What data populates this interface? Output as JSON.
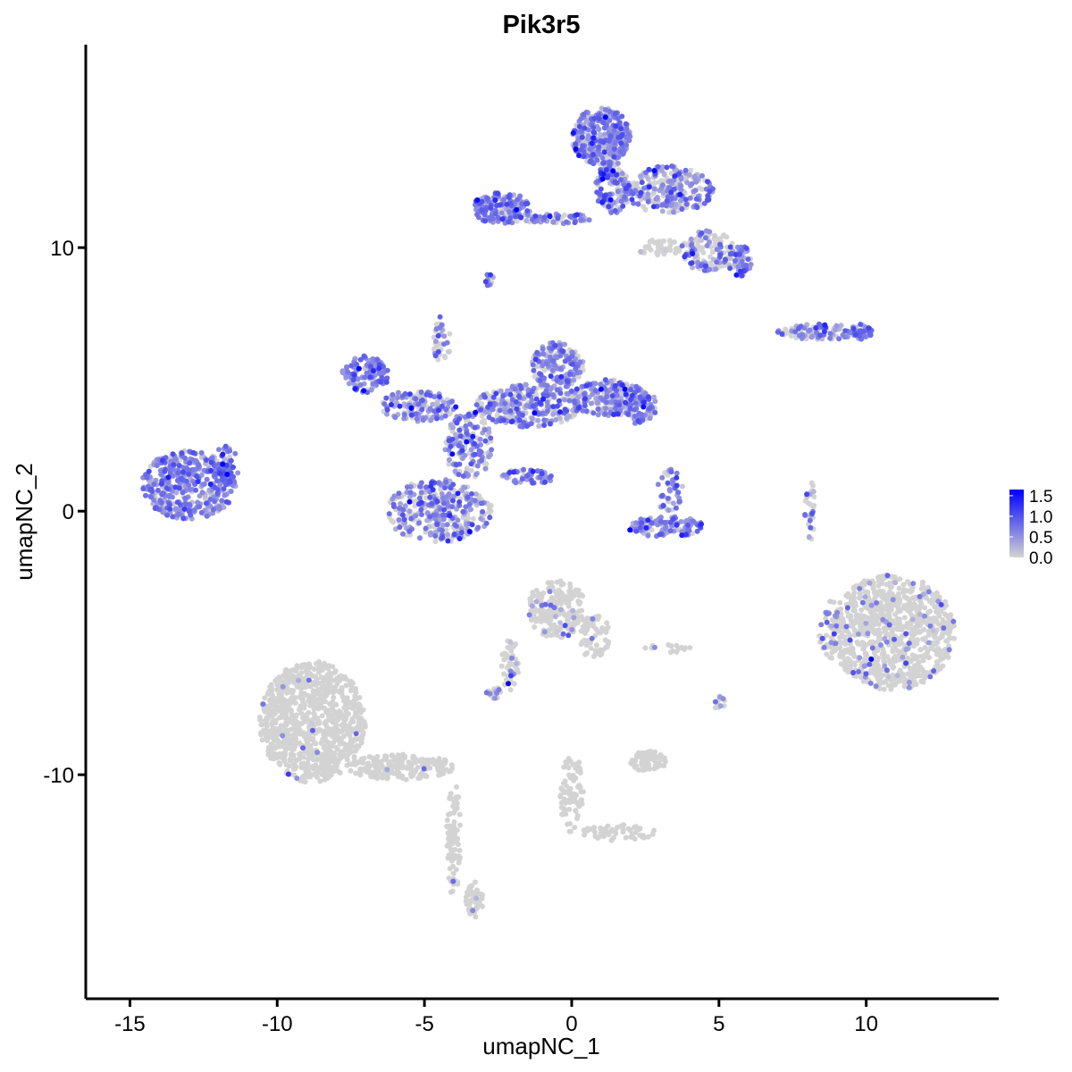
{
  "chart_data": {
    "type": "scatter",
    "title": "Pik3r5",
    "xlabel": "umapNC_1",
    "ylabel": "umapNC_2",
    "xlim": [
      -16.5,
      14.5
    ],
    "ylim": [
      -18.5,
      17.7
    ],
    "x_ticks": [
      -15,
      -10,
      -5,
      0,
      5,
      10
    ],
    "x_tick_labels": [
      "-15",
      "-10",
      "-5",
      "0",
      "5",
      "10"
    ],
    "y_ticks": [
      -10,
      0,
      10
    ],
    "y_tick_labels": [
      "-10",
      "0",
      "10"
    ],
    "grid": false,
    "legend": {
      "placement": "right",
      "type": "colorbar",
      "ticks": [
        0.0,
        0.5,
        1.0,
        1.5
      ],
      "tick_labels": [
        "0.0",
        "0.5",
        "1.0",
        "1.5"
      ],
      "range": [
        0,
        1.65
      ],
      "low_color": "#d3d3d3",
      "high_color": "#0000ff"
    },
    "clusters": [
      {
        "cx": -13,
        "cy": 1,
        "rx": 1.6,
        "ry": 1.3,
        "expr": 0.75,
        "n": 430
      },
      {
        "cx": -11.7,
        "cy": 1.7,
        "rx": 0.5,
        "ry": 0.8,
        "expr": 0.8,
        "n": 40
      },
      {
        "cx": -7,
        "cy": 5.2,
        "rx": 0.8,
        "ry": 0.7,
        "expr": 0.75,
        "n": 130
      },
      {
        "cx": -5.2,
        "cy": 4,
        "rx": 1.3,
        "ry": 0.6,
        "expr": 0.55,
        "n": 150
      },
      {
        "cx": -4.5,
        "cy": 0,
        "rx": 1.8,
        "ry": 1.2,
        "expr": 0.55,
        "n": 340
      },
      {
        "cx": -3.5,
        "cy": 2.5,
        "rx": 0.8,
        "ry": 1.3,
        "expr": 0.5,
        "n": 160
      },
      {
        "cx": -1.5,
        "cy": 4,
        "rx": 1.8,
        "ry": 0.8,
        "expr": 0.55,
        "n": 300
      },
      {
        "cx": -0.5,
        "cy": 5.5,
        "rx": 0.9,
        "ry": 0.9,
        "expr": 0.6,
        "n": 170
      },
      {
        "cx": 1.2,
        "cy": 4.3,
        "rx": 1.3,
        "ry": 0.7,
        "expr": 0.6,
        "n": 220
      },
      {
        "cx": 2.2,
        "cy": 4,
        "rx": 0.7,
        "ry": 0.7,
        "expr": 0.65,
        "n": 90
      },
      {
        "cx": -4.4,
        "cy": 6.5,
        "rx": 0.3,
        "ry": 0.9,
        "expr": 0.2,
        "n": 40
      },
      {
        "cx": -1.5,
        "cy": 1.3,
        "rx": 0.9,
        "ry": 0.3,
        "expr": 0.9,
        "n": 60
      },
      {
        "cx": -2.4,
        "cy": 11.5,
        "rx": 1,
        "ry": 0.6,
        "expr": 0.75,
        "n": 150
      },
      {
        "cx": -0.5,
        "cy": 11.1,
        "rx": 1.2,
        "ry": 0.2,
        "expr": 0.6,
        "n": 60
      },
      {
        "cx": 1,
        "cy": 14.2,
        "rx": 1,
        "ry": 1.1,
        "expr": 0.7,
        "n": 330
      },
      {
        "cx": 1.4,
        "cy": 12.3,
        "rx": 0.6,
        "ry": 1,
        "expr": 0.55,
        "n": 140
      },
      {
        "cx": 3.3,
        "cy": 12.2,
        "rx": 1.5,
        "ry": 0.9,
        "expr": 0.5,
        "n": 240
      },
      {
        "cx": 4.6,
        "cy": 9.9,
        "rx": 0.9,
        "ry": 0.8,
        "expr": 0.4,
        "n": 130
      },
      {
        "cx": 5.7,
        "cy": 9.5,
        "rx": 0.4,
        "ry": 0.6,
        "expr": 0.75,
        "n": 60
      },
      {
        "cx": 3,
        "cy": 10,
        "rx": 0.8,
        "ry": 0.3,
        "expr": 0.05,
        "n": 40
      },
      {
        "cx": 8.4,
        "cy": 6.8,
        "rx": 1.4,
        "ry": 0.3,
        "expr": 0.5,
        "n": 110
      },
      {
        "cx": 9.8,
        "cy": 6.8,
        "rx": 0.4,
        "ry": 0.3,
        "expr": 0.8,
        "n": 40
      },
      {
        "cx": 3.2,
        "cy": -0.6,
        "rx": 1.3,
        "ry": 0.4,
        "expr": 0.8,
        "n": 120
      },
      {
        "cx": 3.3,
        "cy": 0.8,
        "rx": 0.5,
        "ry": 0.8,
        "expr": 0.6,
        "n": 50
      },
      {
        "cx": 8.1,
        "cy": 0,
        "rx": 0.2,
        "ry": 1.2,
        "expr": 0.35,
        "n": 30
      },
      {
        "cx": 10.9,
        "cy": -4.6,
        "rx": 2.1,
        "ry": 2.2,
        "expr": 0.06,
        "n": 900
      },
      {
        "cx": 8.8,
        "cy": -4.5,
        "rx": 0.4,
        "ry": 1.1,
        "expr": 0.3,
        "n": 50
      },
      {
        "cx": -8.8,
        "cy": -8,
        "rx": 1.8,
        "ry": 2.3,
        "expr": 0.01,
        "n": 900
      },
      {
        "cx": -5.8,
        "cy": -9.7,
        "rx": 1.8,
        "ry": 0.5,
        "expr": 0.01,
        "n": 200
      },
      {
        "cx": -4,
        "cy": -12.5,
        "rx": 0.25,
        "ry": 2.2,
        "expr": 0.02,
        "n": 80
      },
      {
        "cx": -3.3,
        "cy": -14.7,
        "rx": 0.3,
        "ry": 0.7,
        "expr": 0.02,
        "n": 50
      },
      {
        "cx": -0.5,
        "cy": -3.7,
        "rx": 1,
        "ry": 1.1,
        "expr": 0.05,
        "n": 200
      },
      {
        "cx": 0.8,
        "cy": -4.8,
        "rx": 0.5,
        "ry": 0.9,
        "expr": 0.03,
        "n": 70
      },
      {
        "cx": -2.1,
        "cy": -5.8,
        "rx": 0.3,
        "ry": 1,
        "expr": 0.04,
        "n": 50
      },
      {
        "cx": -2.6,
        "cy": -6.9,
        "rx": 0.3,
        "ry": 0.2,
        "expr": 0.35,
        "n": 20
      },
      {
        "cx": 2.6,
        "cy": -9.5,
        "rx": 0.6,
        "ry": 0.4,
        "expr": 0.03,
        "n": 80
      },
      {
        "cx": 0,
        "cy": -10.7,
        "rx": 0.4,
        "ry": 1.5,
        "expr": 0.01,
        "n": 80
      },
      {
        "cx": 1.6,
        "cy": -12.2,
        "rx": 1.3,
        "ry": 0.3,
        "expr": 0.01,
        "n": 50
      },
      {
        "cx": 5,
        "cy": -7.3,
        "rx": 0.2,
        "ry": 0.3,
        "expr": 0.3,
        "n": 12
      },
      {
        "cx": 3.3,
        "cy": -5.2,
        "rx": 0.8,
        "ry": 0.15,
        "expr": 0.05,
        "n": 15
      },
      {
        "cx": -2.8,
        "cy": 8.8,
        "rx": 0.15,
        "ry": 0.3,
        "expr": 0.6,
        "n": 10
      }
    ]
  }
}
